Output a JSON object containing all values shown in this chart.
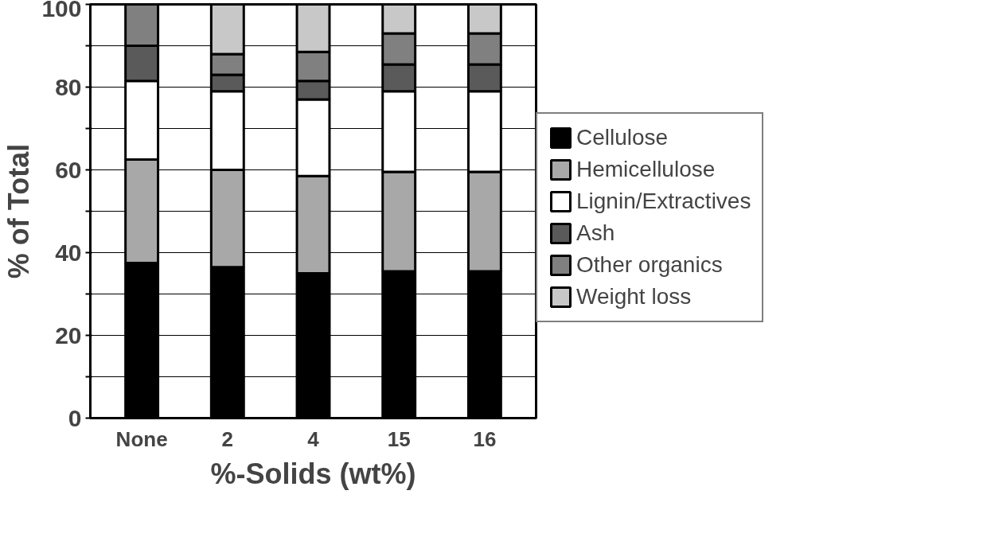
{
  "chart_data": {
    "type": "bar",
    "stacked": true,
    "xlabel": "%-Solids (wt%)",
    "ylabel": "% of Total",
    "categories": [
      "None",
      "2",
      "4",
      "15",
      "16"
    ],
    "series": [
      {
        "name": "Cellulose",
        "color": "#000000",
        "values": [
          37.5,
          36.5,
          35,
          35.5,
          35.5
        ]
      },
      {
        "name": "Hemicellulose",
        "color": "#a8a8a8",
        "values": [
          25,
          23.5,
          23.5,
          24,
          24
        ]
      },
      {
        "name": "Lignin/Extractives",
        "color": "#ffffff",
        "values": [
          19,
          19,
          18.5,
          19.5,
          19.5
        ]
      },
      {
        "name": "Ash",
        "color": "#5a5a5a",
        "values": [
          8.5,
          4,
          4.5,
          6.5,
          6.5
        ]
      },
      {
        "name": "Other organics",
        "color": "#808080",
        "values": [
          10,
          5,
          7,
          7.5,
          7.5
        ]
      },
      {
        "name": "Weight loss",
        "color": "#c8c8c8",
        "values": [
          null,
          12,
          11.5,
          7,
          7
        ]
      }
    ],
    "ylim": [
      0,
      100
    ],
    "yticks": [
      0,
      {
        "value": 10,
        "label": null
      },
      20,
      {
        "value": 30,
        "label": null
      },
      40,
      {
        "value": 50,
        "label": null
      },
      60,
      {
        "value": 70,
        "label": null
      },
      80,
      {
        "value": 90,
        "label": null
      },
      100
    ],
    "grid": "y",
    "legend": "right"
  }
}
